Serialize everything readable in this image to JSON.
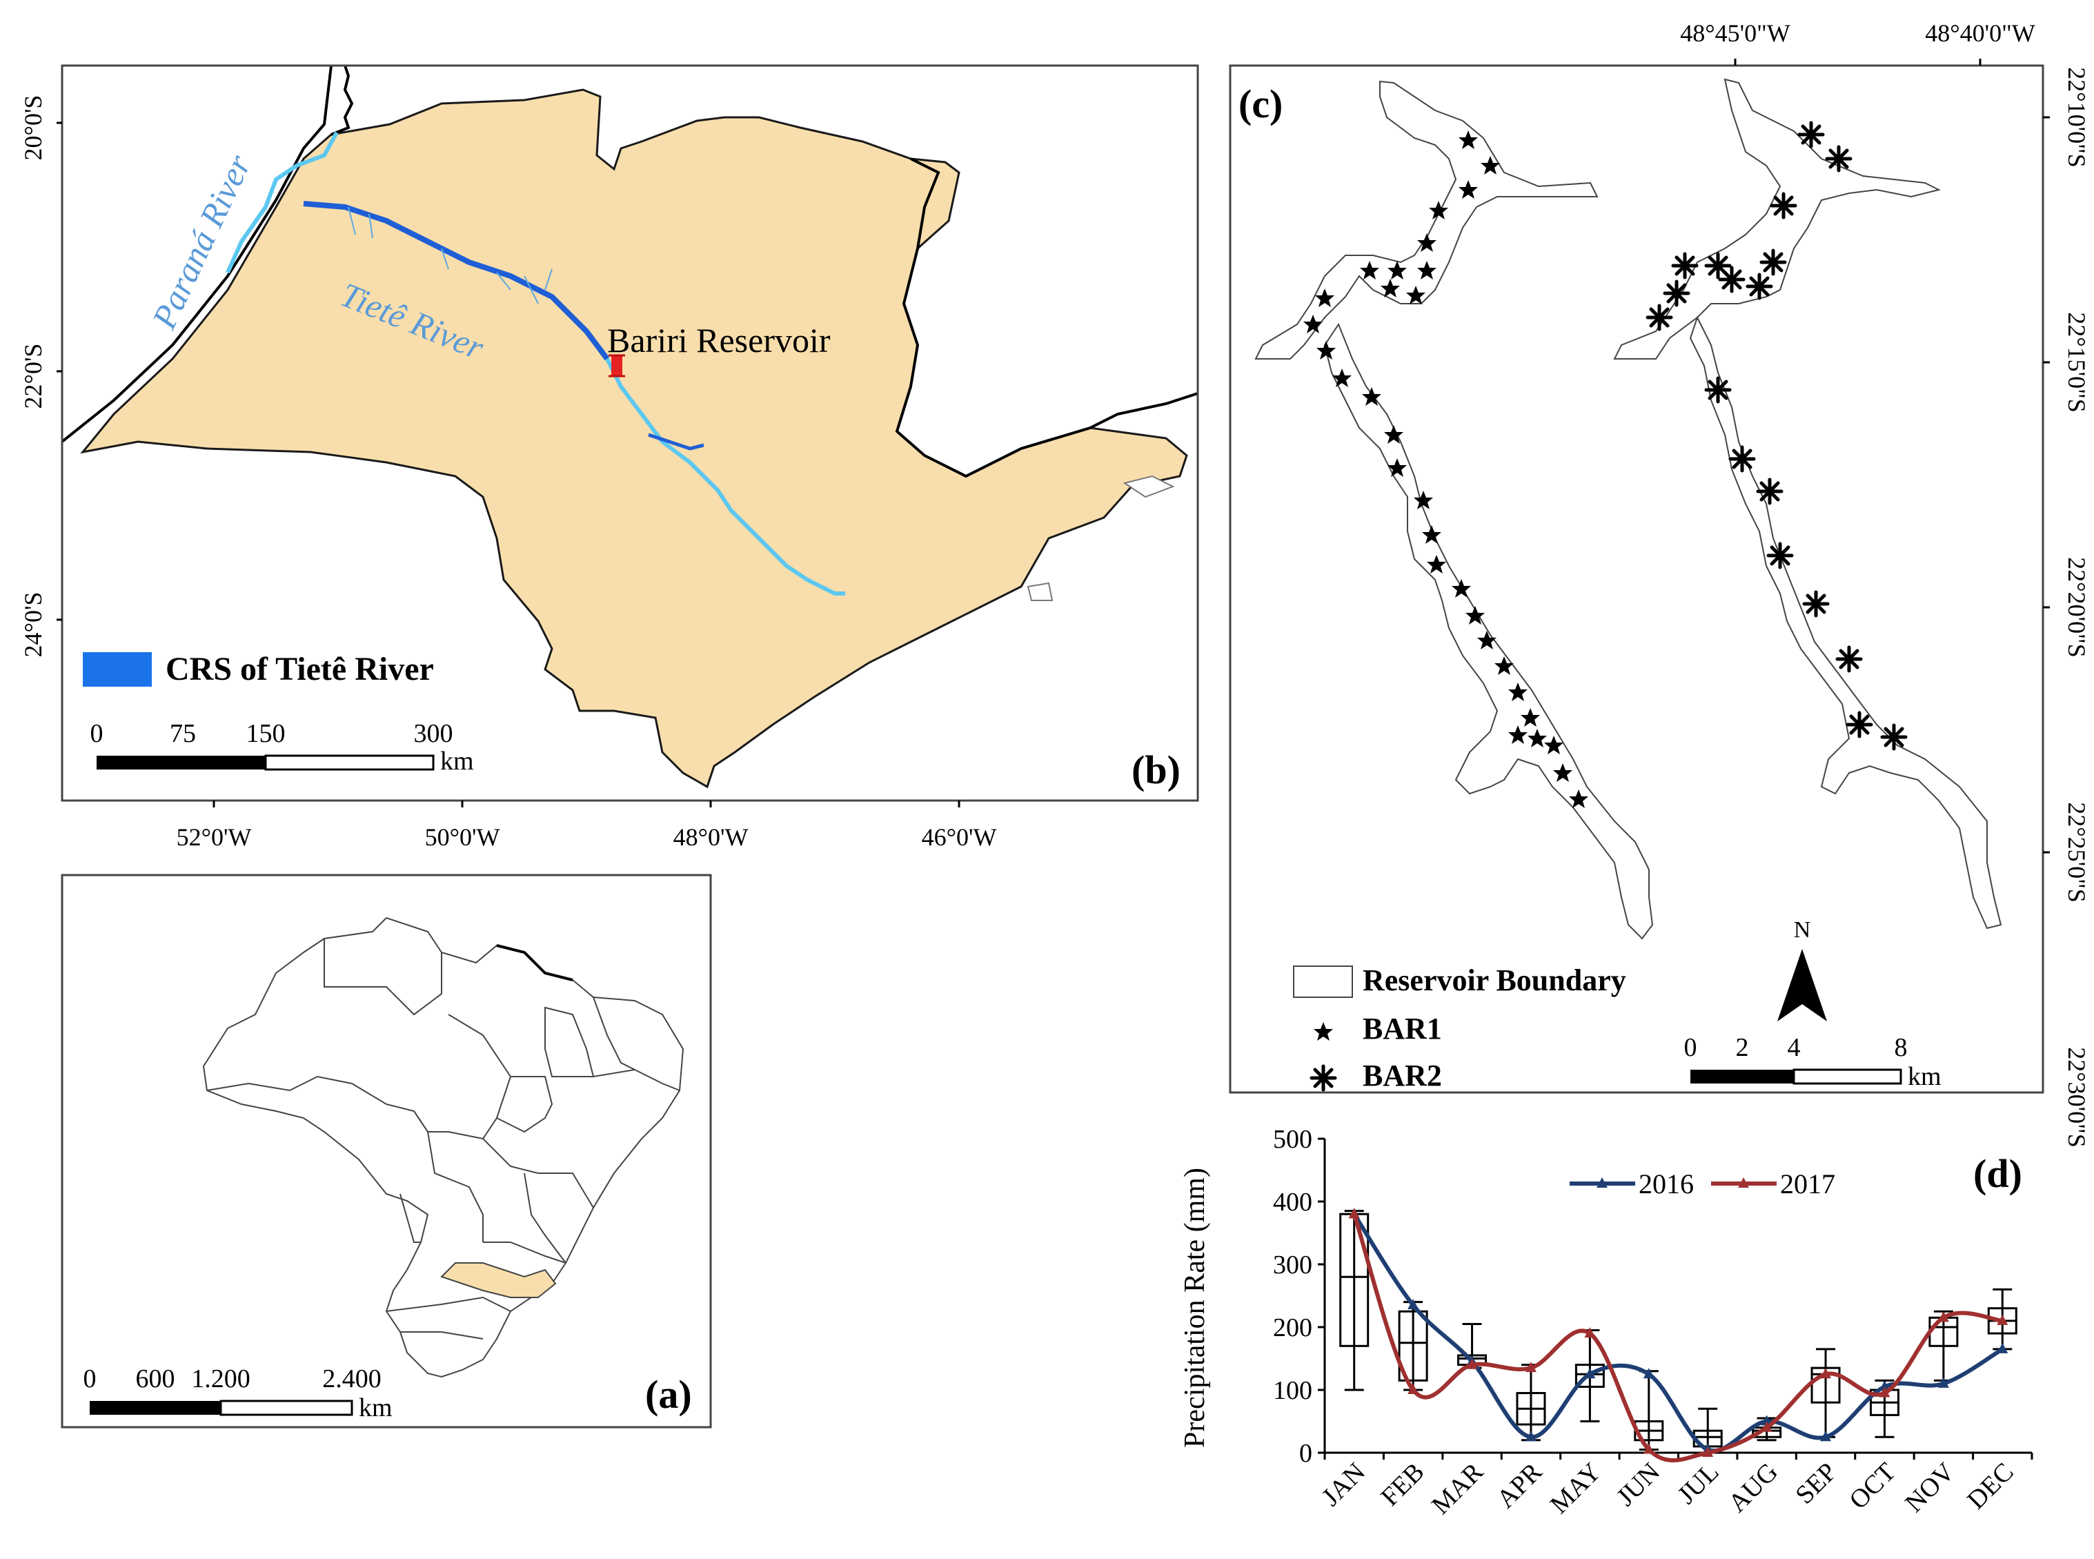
{
  "colors": {
    "land": "#f8deac",
    "river_dark": "#1f5fd6",
    "river_light": "#5cc8f0",
    "label_river": "#5a9ad8",
    "marker": "#e52222",
    "series_2016": "#1f3f73",
    "series_2017": "#a03030"
  },
  "panel_b": {
    "label": "(b)",
    "lat_labels": [
      "20°0'S",
      "22°0'S",
      "24°0'S"
    ],
    "lon_labels": [
      "52°0'W",
      "50°0'W",
      "48°0'W",
      "46°0'W"
    ],
    "river_labels": {
      "parana": "Paraná River",
      "tiete": "Tietê River"
    },
    "reservoir_label": "Bariri Reservoir",
    "legend": "CRS of Tietê River",
    "scale": {
      "ticks": [
        "0",
        "75",
        "150",
        "300"
      ],
      "unit": "km"
    }
  },
  "panel_a": {
    "label": "(a)",
    "scale": {
      "ticks": [
        "0",
        "600",
        "1.200",
        "2.400"
      ],
      "unit": "km"
    }
  },
  "panel_c": {
    "label": "(c)",
    "lon_labels": [
      "48°45'0\"W",
      "48°40'0\"W"
    ],
    "lat_labels": [
      "22°10'0\"S",
      "22°15'0\"S",
      "22°20'0\"S",
      "22°25'0\"S",
      "22°30'0\"S"
    ],
    "legend": {
      "boundary": "Reservoir Boundary",
      "bar1": "BAR1",
      "bar2": "BAR2"
    },
    "north": "N",
    "scale": {
      "ticks": [
        "0",
        "2",
        "4",
        "8"
      ],
      "unit": "km"
    }
  },
  "panel_d": {
    "label": "(d)"
  },
  "chart_data": {
    "type": "line",
    "title": "",
    "xlabel": "",
    "ylabel": "Precipitation Rate (mm)",
    "ylim": [
      0,
      500
    ],
    "yticks": [
      0,
      100,
      200,
      300,
      400,
      500
    ],
    "categories": [
      "JAN",
      "FEB",
      "MAR",
      "APR",
      "MAY",
      "JUN",
      "JUL",
      "AUG",
      "SEP",
      "OCT",
      "NOV",
      "DEC"
    ],
    "series": [
      {
        "name": "2016",
        "values": [
          380,
          235,
          145,
          25,
          125,
          125,
          5,
          50,
          25,
          105,
          110,
          165
        ]
      },
      {
        "name": "2017",
        "values": [
          380,
          100,
          140,
          135,
          190,
          5,
          0,
          40,
          125,
          95,
          215,
          210
        ]
      }
    ],
    "boxplots": [
      {
        "low": 100,
        "q1": 170,
        "median": 280,
        "q3": 380,
        "high": 385
      },
      {
        "low": 100,
        "q1": 115,
        "median": 175,
        "q3": 225,
        "high": 240
      },
      {
        "low": 135,
        "q1": 140,
        "median": 150,
        "q3": 155,
        "high": 205
      },
      {
        "low": 20,
        "q1": 45,
        "median": 70,
        "q3": 95,
        "high": 140
      },
      {
        "low": 50,
        "q1": 105,
        "median": 125,
        "q3": 140,
        "high": 195
      },
      {
        "low": 5,
        "q1": 20,
        "median": 35,
        "q3": 50,
        "high": 130
      },
      {
        "low": 0,
        "q1": 10,
        "median": 25,
        "q3": 35,
        "high": 70
      },
      {
        "low": 20,
        "q1": 25,
        "median": 35,
        "q3": 40,
        "high": 55
      },
      {
        "low": 25,
        "q1": 80,
        "median": 125,
        "q3": 135,
        "high": 165
      },
      {
        "low": 25,
        "q1": 60,
        "median": 80,
        "q3": 100,
        "high": 115
      },
      {
        "low": 115,
        "q1": 170,
        "median": 200,
        "q3": 215,
        "high": 225
      },
      {
        "low": 165,
        "q1": 190,
        "median": 210,
        "q3": 230,
        "high": 260
      }
    ]
  }
}
